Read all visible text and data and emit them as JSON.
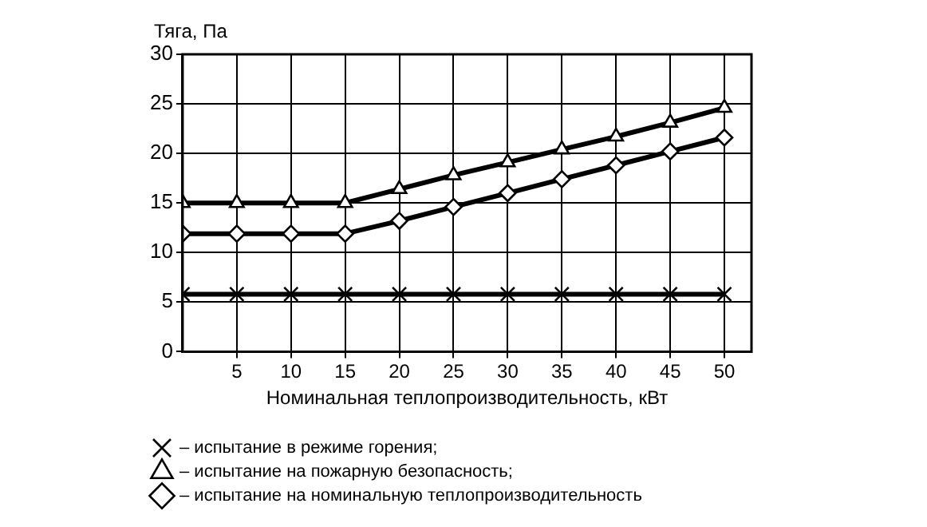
{
  "chart_data": {
    "type": "line",
    "ylabel": "Тяга, Па",
    "xlabel": "Номинальная теплопроизводительность, кВт",
    "x": [
      0,
      5,
      10,
      15,
      20,
      25,
      30,
      35,
      40,
      45,
      50
    ],
    "series": [
      {
        "name": "– испытание в режиме горения;",
        "color": "#000000",
        "marker": "cross",
        "values": [
          5.8,
          5.8,
          5.8,
          5.8,
          5.8,
          5.8,
          5.8,
          5.8,
          5.8,
          5.8,
          5.8
        ]
      },
      {
        "name": "– испытание на пожарную безопасность;",
        "color": "#000000",
        "marker": "triangle",
        "values": [
          15,
          15,
          15,
          15,
          16.4,
          17.8,
          19.1,
          20.4,
          21.7,
          23.1,
          24.6
        ]
      },
      {
        "name": "– испытание на номинальную теплопроизводительность",
        "color": "#000000",
        "marker": "diamond",
        "values": [
          11.9,
          11.9,
          11.9,
          11.9,
          13.2,
          14.6,
          16,
          17.4,
          18.8,
          20.2,
          21.6
        ]
      }
    ],
    "xlim": [
      0,
      52.5
    ],
    "xticks": [
      5,
      10,
      15,
      20,
      25,
      30,
      35,
      40,
      45,
      50
    ],
    "ylim": [
      0,
      30
    ],
    "yticks": [
      0,
      5,
      10,
      15,
      20,
      25,
      30
    ],
    "grid": true,
    "legend": "bottom",
    "line_style": "solid"
  }
}
